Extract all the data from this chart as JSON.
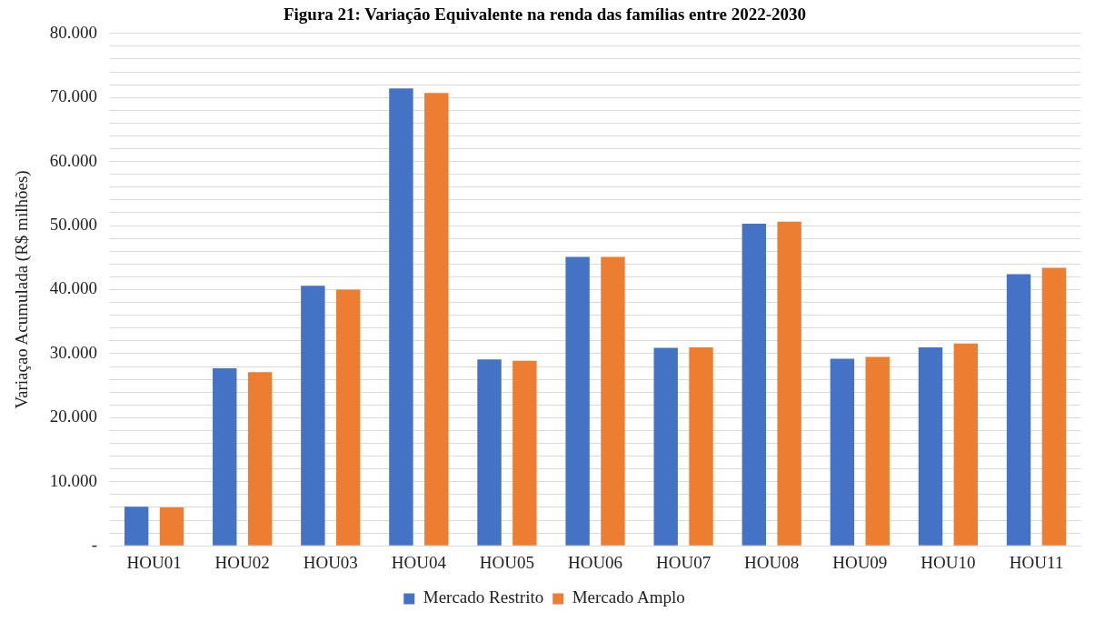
{
  "chart_data": {
    "type": "bar",
    "title": "Figura 21: Variação Equivalente na renda das famílias entre 2022-2030",
    "ylabel": "Variaçao Acumulada (R$ milhões)",
    "categories": [
      "HOU01",
      "HOU02",
      "HOU03",
      "HOU04",
      "HOU05",
      "HOU06",
      "HOU07",
      "HOU08",
      "HOU09",
      "HOU10",
      "HOU11"
    ],
    "series": [
      {
        "name": "Mercado Restrito",
        "color": "#4472c4",
        "values": [
          6100,
          27700,
          40600,
          71400,
          29100,
          45100,
          30900,
          50300,
          29200,
          31000,
          42400
        ]
      },
      {
        "name": "Mercado Amplo",
        "color": "#ed7d31",
        "values": [
          6000,
          27100,
          40000,
          70700,
          28900,
          45100,
          31000,
          50600,
          29500,
          31600,
          43400
        ]
      }
    ],
    "ylim": [
      0,
      80000
    ],
    "yticks": [
      {
        "value": 0,
        "label": "-"
      },
      {
        "value": 2000,
        "label": null
      },
      {
        "value": 4000,
        "label": null
      },
      {
        "value": 6000,
        "label": null
      },
      {
        "value": 8000,
        "label": null
      },
      {
        "value": 10000,
        "label": "10.000"
      },
      {
        "value": 12000,
        "label": null
      },
      {
        "value": 14000,
        "label": null
      },
      {
        "value": 16000,
        "label": null
      },
      {
        "value": 18000,
        "label": null
      },
      {
        "value": 20000,
        "label": "20.000"
      },
      {
        "value": 22000,
        "label": null
      },
      {
        "value": 24000,
        "label": null
      },
      {
        "value": 26000,
        "label": null
      },
      {
        "value": 28000,
        "label": null
      },
      {
        "value": 30000,
        "label": "30.000"
      },
      {
        "value": 32000,
        "label": null
      },
      {
        "value": 34000,
        "label": null
      },
      {
        "value": 36000,
        "label": null
      },
      {
        "value": 38000,
        "label": null
      },
      {
        "value": 40000,
        "label": "40.000"
      },
      {
        "value": 42000,
        "label": null
      },
      {
        "value": 44000,
        "label": null
      },
      {
        "value": 46000,
        "label": null
      },
      {
        "value": 48000,
        "label": null
      },
      {
        "value": 50000,
        "label": "50.000"
      },
      {
        "value": 52000,
        "label": null
      },
      {
        "value": 54000,
        "label": null
      },
      {
        "value": 56000,
        "label": null
      },
      {
        "value": 58000,
        "label": null
      },
      {
        "value": 60000,
        "label": "60.000"
      },
      {
        "value": 62000,
        "label": null
      },
      {
        "value": 64000,
        "label": null
      },
      {
        "value": 66000,
        "label": null
      },
      {
        "value": 68000,
        "label": null
      },
      {
        "value": 70000,
        "label": "70.000"
      },
      {
        "value": 72000,
        "label": null
      },
      {
        "value": 74000,
        "label": null
      },
      {
        "value": 76000,
        "label": null
      },
      {
        "value": 78000,
        "label": null
      },
      {
        "value": 80000,
        "label": "80.000"
      }
    ],
    "grid": "y",
    "legend": "bottom"
  }
}
